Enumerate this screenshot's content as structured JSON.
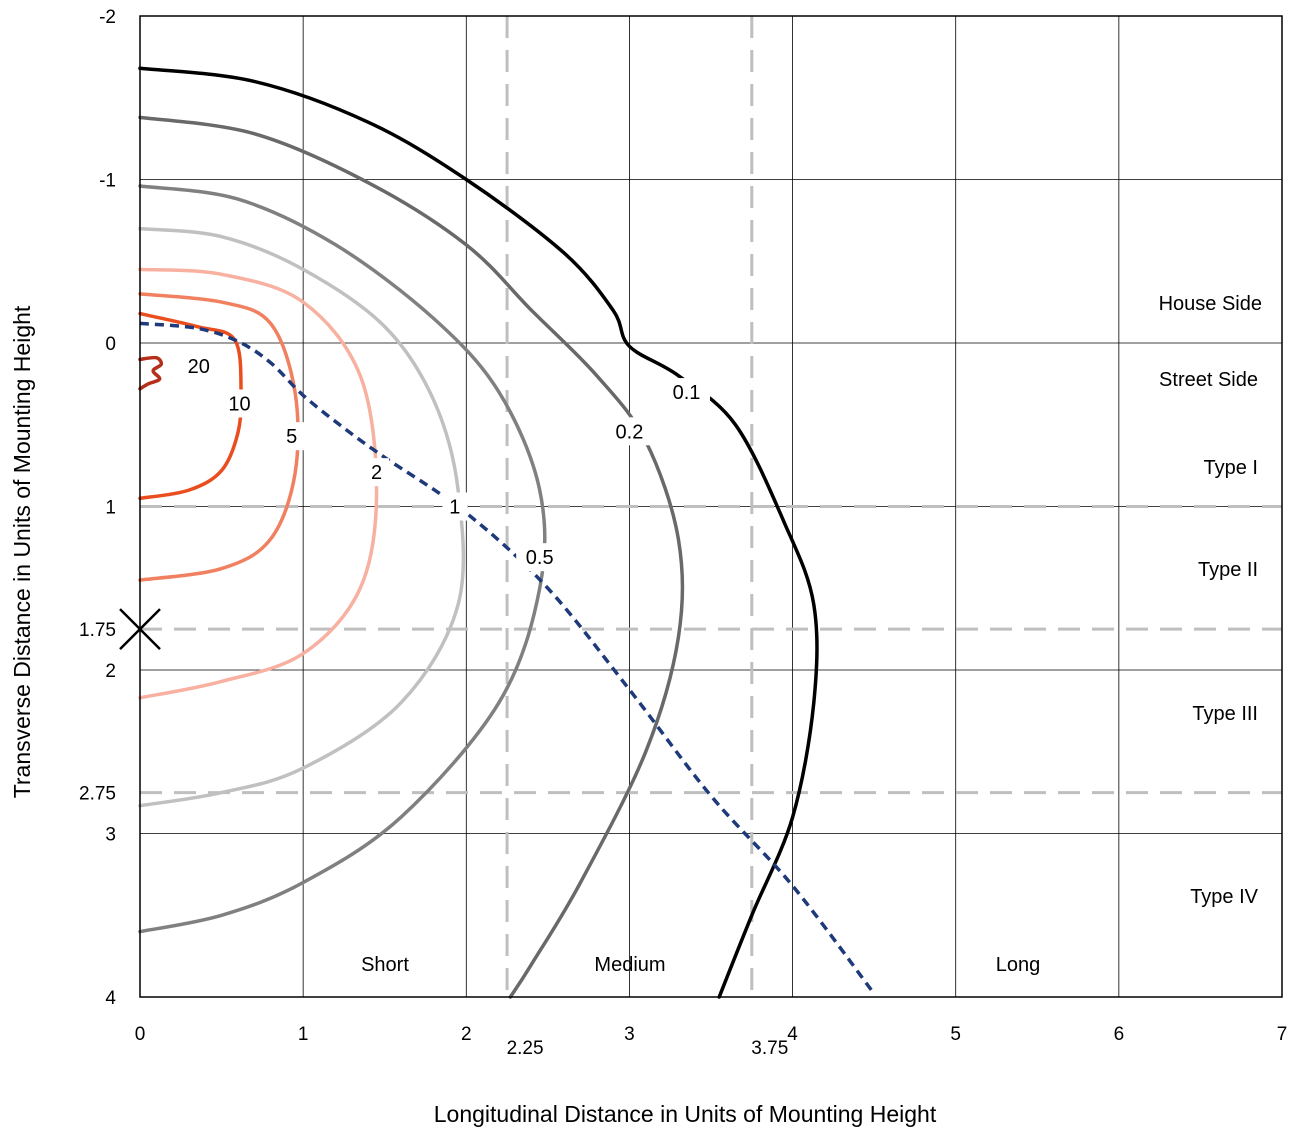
{
  "chart_data": {
    "type": "line",
    "xlabel": "Longitudinal Distance in Units of Mounting Height",
    "ylabel": "Transverse Distance in Units of Mounting Height",
    "xlim": [
      0,
      7
    ],
    "ylim": [
      -2,
      4
    ],
    "y_inverted": true,
    "grid": true,
    "x_ticks": [
      "0",
      "1",
      "2",
      "3",
      "4",
      "5",
      "6",
      "7"
    ],
    "y_ticks": [
      "-2",
      "-1",
      "0",
      "1",
      "2",
      "3",
      "4"
    ],
    "extra_x_ticks": [
      "2.25",
      "3.75"
    ],
    "extra_y_ticks": [
      "1.75",
      "2.75"
    ],
    "reference_lines": {
      "vertical_x": [
        2.25,
        3.75
      ],
      "horizontal_y": [
        1,
        1.75,
        2.75
      ],
      "color": "#bfbfbf"
    },
    "region_labels": {
      "house_side": "House Side",
      "street_side": "Street Side",
      "type_1": "Type I",
      "type_2": "Type II",
      "type_3": "Type III",
      "type_4": "Type IV",
      "short": "Short",
      "medium": "Medium",
      "long": "Long"
    },
    "luminaire_marker": {
      "x": 0,
      "y": 1.75
    },
    "max_candela_trace": {
      "color": "#1f3a7a",
      "x": [
        0,
        0.35,
        0.6,
        0.8,
        1.0,
        1.25,
        1.5,
        2.0,
        2.5,
        3.0,
        3.5,
        4.0,
        4.5
      ],
      "y": [
        -0.12,
        -0.09,
        -0.01,
        0.12,
        0.32,
        0.52,
        0.7,
        1.04,
        1.5,
        2.12,
        2.77,
        3.32,
        3.98
      ]
    },
    "series": [
      {
        "name": "20",
        "color": "#b5301a",
        "x": [
          0,
          0.1,
          0.13,
          0.08,
          0.12,
          0.05,
          0
        ],
        "y": [
          0.1,
          0.09,
          0.13,
          0.17,
          0.22,
          0.25,
          0.28
        ]
      },
      {
        "name": "10",
        "color": "#ea4e1f",
        "x": [
          0,
          0.35,
          0.58,
          0.62,
          0.6,
          0.5,
          0.3,
          0
        ],
        "y": [
          -0.18,
          -0.1,
          -0.02,
          0.3,
          0.55,
          0.78,
          0.9,
          0.95
        ]
      },
      {
        "name": "5",
        "color": "#f08060",
        "x": [
          0,
          0.5,
          0.8,
          0.95,
          0.95,
          0.8,
          0.5,
          0
        ],
        "y": [
          -0.3,
          -0.25,
          -0.12,
          0.3,
          0.8,
          1.2,
          1.38,
          1.45
        ]
      },
      {
        "name": "2",
        "color": "#f8b0a0",
        "x": [
          0,
          0.5,
          1.0,
          1.35,
          1.45,
          1.35,
          1.0,
          0.5,
          0
        ],
        "y": [
          -0.45,
          -0.42,
          -0.25,
          0.2,
          0.9,
          1.5,
          1.9,
          2.07,
          2.17
        ]
      },
      {
        "name": "1",
        "color": "#c0c0c0",
        "x": [
          0,
          0.5,
          1.0,
          1.5,
          1.8,
          1.95,
          1.95,
          1.6,
          1.0,
          0.5,
          0
        ],
        "y": [
          -0.7,
          -0.65,
          -0.45,
          -0.1,
          0.35,
          0.9,
          1.6,
          2.2,
          2.6,
          2.75,
          2.83
        ]
      },
      {
        "name": "0.5",
        "color": "#808080",
        "x": [
          0,
          0.6,
          1.2,
          1.8,
          2.2,
          2.45,
          2.45,
          2.2,
          1.6,
          1.0,
          0.5,
          0
        ],
        "y": [
          -0.96,
          -0.88,
          -0.6,
          -0.15,
          0.3,
          0.9,
          1.5,
          2.2,
          2.9,
          3.3,
          3.5,
          3.6
        ]
      },
      {
        "name": "0.2",
        "color": "#696969",
        "x": [
          0,
          0.7,
          1.4,
          2.0,
          2.4,
          2.8,
          3.1,
          3.3,
          3.3,
          3.1,
          2.7,
          2.4,
          2.27
        ],
        "y": [
          -1.38,
          -1.28,
          -0.98,
          -0.6,
          -0.2,
          0.2,
          0.6,
          1.2,
          1.8,
          2.5,
          3.3,
          3.8,
          4.0
        ]
      },
      {
        "name": "0.1",
        "color": "#000000",
        "x": [
          0,
          0.7,
          1.4,
          2.0,
          2.6,
          2.9,
          3.0,
          3.3,
          3.65,
          3.95,
          4.13,
          4.13,
          4.0,
          3.75,
          3.55
        ],
        "y": [
          -1.68,
          -1.6,
          -1.35,
          -1.0,
          -0.55,
          -0.2,
          0.02,
          0.2,
          0.5,
          1.1,
          1.6,
          2.2,
          2.9,
          3.5,
          4.0
        ]
      }
    ],
    "contour_labels": [
      {
        "text": "20",
        "x": 0.36,
        "y": 0.14
      },
      {
        "text": "10",
        "x": 0.61,
        "y": 0.37
      },
      {
        "text": "5",
        "x": 0.93,
        "y": 0.57
      },
      {
        "text": "2",
        "x": 1.45,
        "y": 0.79
      },
      {
        "text": "1",
        "x": 1.93,
        "y": 1.0
      },
      {
        "text": "0.5",
        "x": 2.45,
        "y": 1.31
      },
      {
        "text": "0.2",
        "x": 3.0,
        "y": 0.54
      },
      {
        "text": "0.1",
        "x": 3.35,
        "y": 0.3
      }
    ]
  }
}
